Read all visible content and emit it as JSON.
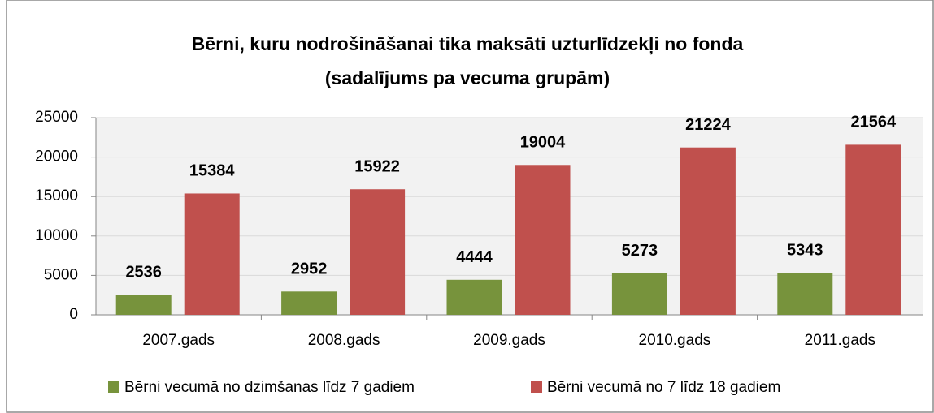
{
  "chart_data": {
    "type": "bar",
    "title": [
      "Bērni, kuru nodrošināšanai tika maksāti uzturlīdzekļi no fonda",
      "(sadalījums pa vecuma grupām)"
    ],
    "categories": [
      "2007.gads",
      "2008.gads",
      "2009.gads",
      "2010.gads",
      "2011.gads"
    ],
    "series": [
      {
        "name": "Bērni vecumā no dzimšanas līdz 7 gadiem",
        "color": "#77933c",
        "values": [
          2536,
          2952,
          4444,
          5273,
          5343
        ]
      },
      {
        "name": "Bērni vecumā no 7 līdz 18 gadiem",
        "color": "#c0504d",
        "values": [
          15384,
          15922,
          19004,
          21224,
          21564
        ]
      }
    ],
    "ylim": [
      0,
      25000
    ],
    "yticks": [
      0,
      5000,
      10000,
      15000,
      20000,
      25000
    ],
    "grid": true,
    "legend": "bottom"
  }
}
